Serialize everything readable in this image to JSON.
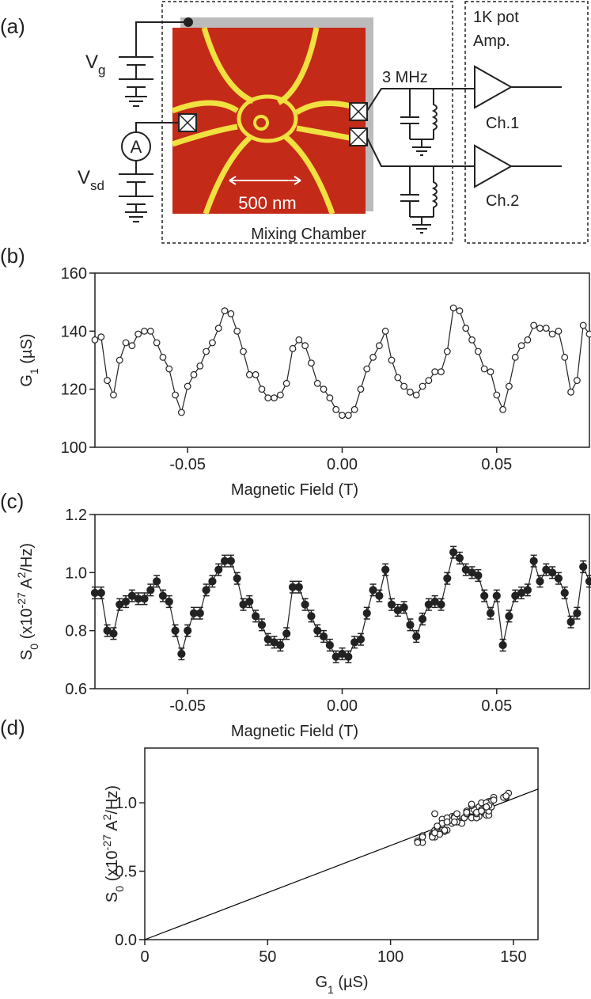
{
  "figure": {
    "panel_labels": [
      "(a)",
      "(b)",
      "(c)",
      "(d)"
    ],
    "diagram": {
      "vg": "V",
      "vg_sub": "g",
      "vsd": "V",
      "vsd_sub": "sd",
      "ammeter": "A",
      "scale_bar": "500 nm",
      "chamber": "Mixing Chamber",
      "filter": "3 MHz",
      "pot": "1K pot",
      "amp": "Amp.",
      "ch1": "Ch.1",
      "ch2": "Ch.2"
    }
  },
  "chart_data": [
    {
      "type": "line",
      "marker": "open",
      "xlim": [
        -0.08,
        0.08
      ],
      "xticks": [
        -0.05,
        {
          "value": 0,
          "label": "0.00"
        },
        0.05
      ],
      "ylim": [
        100,
        160
      ],
      "yticks": [
        100,
        120,
        140,
        160
      ],
      "xlabel": "Magnetic Field (T)",
      "ylabel": [
        {
          "text": "G"
        },
        {
          "text": "1",
          "shift": "sub"
        },
        {
          "text": " (µS)"
        }
      ],
      "x": [
        -0.08,
        -0.078,
        -0.076,
        -0.074,
        -0.072,
        -0.07,
        -0.068,
        -0.066,
        -0.064,
        -0.062,
        -0.06,
        -0.058,
        -0.056,
        -0.054,
        -0.052,
        -0.05,
        -0.048,
        -0.046,
        -0.044,
        -0.042,
        -0.04,
        -0.038,
        -0.036,
        -0.034,
        -0.032,
        -0.03,
        -0.028,
        -0.026,
        -0.024,
        -0.022,
        -0.02,
        -0.018,
        -0.016,
        -0.014,
        -0.012,
        -0.01,
        -0.008,
        -0.006,
        -0.004,
        -0.002,
        0,
        0.002,
        0.004,
        0.006,
        0.008,
        0.01,
        0.012,
        0.014,
        0.016,
        0.018,
        0.02,
        0.022,
        0.024,
        0.026,
        0.028,
        0.03,
        0.032,
        0.034,
        0.036,
        0.038,
        0.04,
        0.042,
        0.044,
        0.046,
        0.048,
        0.05,
        0.052,
        0.054,
        0.056,
        0.058,
        0.06,
        0.062,
        0.064,
        0.066,
        0.068,
        0.07,
        0.072,
        0.074,
        0.076,
        0.078,
        0.08
      ],
      "series": [
        {
          "color": "#222222",
          "values": [
            137,
            138,
            123,
            118,
            130,
            136,
            135,
            139,
            140,
            140,
            136,
            131,
            127,
            118,
            112,
            121,
            125,
            128,
            133,
            136,
            141,
            147,
            146,
            140,
            133,
            125,
            125,
            120,
            117,
            117,
            118,
            122,
            134,
            137,
            135,
            129,
            122,
            120,
            117,
            113,
            111,
            111,
            113,
            120,
            127,
            131,
            135,
            140,
            130,
            124,
            121,
            119,
            118,
            121,
            123,
            126,
            126,
            133,
            148,
            147,
            141,
            137,
            133,
            127,
            126,
            118,
            113,
            121,
            131,
            135,
            137,
            142,
            141,
            141,
            139,
            140,
            131,
            119,
            123,
            142,
            139
          ]
        }
      ]
    },
    {
      "type": "line",
      "marker": "filled",
      "xlim": [
        -0.08,
        0.08
      ],
      "xticks": [
        -0.05,
        {
          "value": 0,
          "label": "0.00"
        },
        0.05
      ],
      "ylim": [
        0.6,
        1.2
      ],
      "yticks": [
        0.6,
        0.8,
        {
          "value": 1,
          "label": "1.0"
        },
        1.2
      ],
      "xlabel": "Magnetic Field (T)",
      "ylabel": [
        {
          "text": "S"
        },
        {
          "text": "0",
          "shift": "sub"
        },
        {
          "text": " (x10"
        },
        {
          "text": "-27",
          "shift": "super"
        },
        {
          "text": " A"
        },
        {
          "text": "2",
          "shift": "super"
        },
        {
          "text": "/Hz)"
        }
      ],
      "x": [
        -0.08,
        -0.078,
        -0.076,
        -0.074,
        -0.072,
        -0.07,
        -0.068,
        -0.066,
        -0.064,
        -0.062,
        -0.06,
        -0.058,
        -0.056,
        -0.054,
        -0.052,
        -0.05,
        -0.048,
        -0.046,
        -0.044,
        -0.042,
        -0.04,
        -0.038,
        -0.036,
        -0.034,
        -0.032,
        -0.03,
        -0.028,
        -0.026,
        -0.024,
        -0.022,
        -0.02,
        -0.018,
        -0.016,
        -0.014,
        -0.012,
        -0.01,
        -0.008,
        -0.006,
        -0.004,
        -0.002,
        0,
        0.002,
        0.004,
        0.006,
        0.008,
        0.01,
        0.012,
        0.014,
        0.016,
        0.018,
        0.02,
        0.022,
        0.024,
        0.026,
        0.028,
        0.03,
        0.032,
        0.034,
        0.036,
        0.038,
        0.04,
        0.042,
        0.044,
        0.046,
        0.048,
        0.05,
        0.052,
        0.054,
        0.056,
        0.058,
        0.06,
        0.062,
        0.064,
        0.066,
        0.068,
        0.07,
        0.072,
        0.074,
        0.076,
        0.078,
        0.08
      ],
      "series": [
        {
          "color": "#222222",
          "error": 0.02,
          "values": [
            0.93,
            0.93,
            0.8,
            0.79,
            0.89,
            0.9,
            0.92,
            0.91,
            0.91,
            0.94,
            0.97,
            0.92,
            0.9,
            0.8,
            0.72,
            0.8,
            0.86,
            0.86,
            0.94,
            0.97,
            1.01,
            1.04,
            1.04,
            0.98,
            0.89,
            0.9,
            0.85,
            0.82,
            0.77,
            0.76,
            0.75,
            0.79,
            0.95,
            0.95,
            0.89,
            0.85,
            0.8,
            0.78,
            0.75,
            0.71,
            0.72,
            0.71,
            0.76,
            0.77,
            0.86,
            0.94,
            0.92,
            1.01,
            0.89,
            0.87,
            0.88,
            0.82,
            0.78,
            0.84,
            0.89,
            0.9,
            0.89,
            0.98,
            1.07,
            1.05,
            1.01,
            1,
            0.99,
            0.92,
            0.86,
            0.92,
            0.75,
            0.85,
            0.92,
            0.93,
            0.94,
            1.04,
            0.97,
            1.01,
            1,
            0.98,
            0.93,
            0.83,
            0.86,
            1.02,
            0.97
          ]
        }
      ]
    },
    {
      "type": "scatter",
      "marker": "open",
      "xlim": [
        0,
        160
      ],
      "xticks": [
        0,
        50,
        100,
        150
      ],
      "ylim": [
        0,
        1.4
      ],
      "yticks": [
        {
          "value": 0,
          "label": "0.0"
        },
        0.5,
        {
          "value": 1,
          "label": "1.0"
        }
      ],
      "xlabel": [
        {
          "text": "G"
        },
        {
          "text": "1",
          "shift": "sub"
        },
        {
          "text": " (µS)"
        }
      ],
      "ylabel": [
        {
          "text": "S"
        },
        {
          "text": "0",
          "shift": "sub"
        },
        {
          "text": " (x10"
        },
        {
          "text": "-27",
          "shift": "super"
        },
        {
          "text": " A"
        },
        {
          "text": "2",
          "shift": "super"
        },
        {
          "text": "/Hz)"
        }
      ],
      "fit": {
        "color": "#000000",
        "x": [
          0,
          160
        ],
        "values": [
          0,
          1.1
        ]
      },
      "series": [
        {
          "color": "#222222",
          "x": [
            137,
            138,
            123,
            118,
            130,
            136,
            135,
            139,
            140,
            140,
            136,
            131,
            127,
            118,
            112,
            121,
            125,
            128,
            133,
            136,
            141,
            147,
            146,
            140,
            133,
            125,
            125,
            120,
            117,
            117,
            118,
            122,
            134,
            137,
            135,
            129,
            122,
            120,
            117,
            113,
            111,
            111,
            113,
            120,
            127,
            131,
            135,
            140,
            130,
            124,
            121,
            119,
            118,
            121,
            123,
            126,
            126,
            133,
            148,
            147,
            141,
            137,
            133,
            127,
            126,
            118,
            113,
            121,
            131,
            135,
            137,
            142,
            141,
            141,
            139,
            140,
            131,
            119,
            123,
            142,
            139
          ],
          "values": [
            0.93,
            0.93,
            0.8,
            0.79,
            0.89,
            0.9,
            0.92,
            0.91,
            0.91,
            0.94,
            0.97,
            0.92,
            0.9,
            0.8,
            0.72,
            0.8,
            0.86,
            0.86,
            0.94,
            0.97,
            1.01,
            1.04,
            1.04,
            0.98,
            0.89,
            0.9,
            0.85,
            0.82,
            0.77,
            0.76,
            0.75,
            0.79,
            0.95,
            0.95,
            0.89,
            0.85,
            0.8,
            0.78,
            0.75,
            0.71,
            0.72,
            0.71,
            0.76,
            0.77,
            0.86,
            0.94,
            0.92,
            1.01,
            0.89,
            0.87,
            0.88,
            0.82,
            0.78,
            0.84,
            0.89,
            0.9,
            0.89,
            0.98,
            1.07,
            1.05,
            1.01,
            1,
            0.99,
            0.92,
            0.86,
            0.92,
            0.75,
            0.85,
            0.92,
            0.93,
            0.94,
            1.04,
            0.97,
            1.01,
            1,
            0.98,
            0.93,
            0.83,
            0.86,
            1.02,
            0.97
          ]
        }
      ]
    }
  ]
}
